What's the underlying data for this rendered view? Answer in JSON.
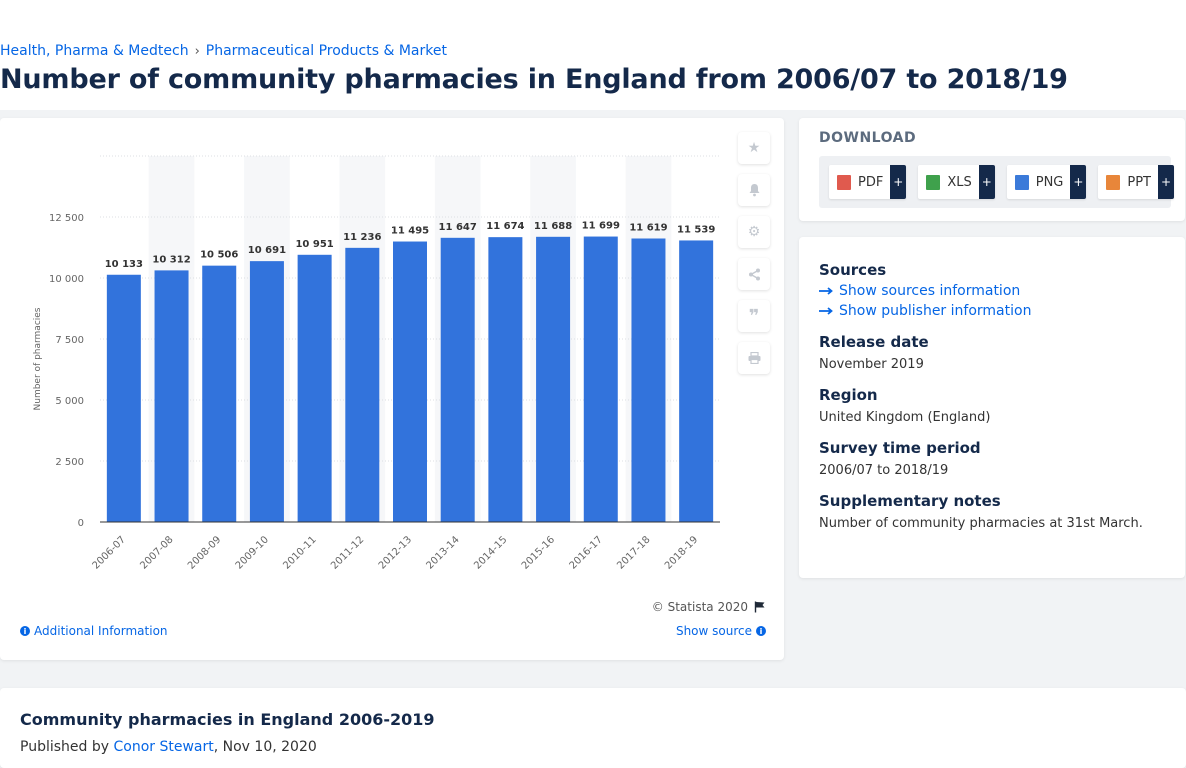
{
  "breadcrumb": {
    "first": "Health, Pharma & Medtech",
    "sep": "›",
    "second": "Pharmaceutical Products & Market"
  },
  "page_title": "Number of community pharmacies in England from 2006/07 to 2018/19",
  "chart_footer": {
    "copyright": "© Statista 2020",
    "additional_info": "Additional Information",
    "show_source": "Show source"
  },
  "download": {
    "title": "DOWNLOAD",
    "buttons": [
      {
        "label": "PDF",
        "plus": "+",
        "color": "#e05a4e"
      },
      {
        "label": "XLS",
        "plus": "+",
        "color": "#3fa14c"
      },
      {
        "label": "PNG",
        "plus": "+",
        "color": "#3b7ad9"
      },
      {
        "label": "PPT",
        "plus": "+",
        "color": "#e8863a"
      }
    ]
  },
  "info": {
    "sources_title": "Sources",
    "sources_link": "Show sources information",
    "publisher_link": "Show publisher information",
    "release_title": "Release date",
    "release_value": "November 2019",
    "region_title": "Region",
    "region_value": "United Kingdom (England)",
    "survey_title": "Survey time period",
    "survey_value": "2006/07 to 2018/19",
    "notes_title": "Supplementary notes",
    "notes_value": "Number of community pharmacies at 31st March."
  },
  "bottom": {
    "title": "Community pharmacies in England 2006-2019",
    "published_by": "Published by",
    "author": "Conor Stewart",
    "date": ", Nov 10, 2020"
  },
  "colors": {
    "bar": "#3273dc",
    "brand_dark": "#14294a",
    "link": "#0666e5"
  },
  "icons": [
    "star-icon",
    "bell-icon",
    "gear-icon",
    "share-icon",
    "quote-icon",
    "print-icon",
    "flag-icon",
    "info-icon",
    "arrow-right-icon"
  ],
  "chart_data": {
    "type": "bar",
    "title": "",
    "xlabel": "",
    "ylabel": "Number of pharmacies",
    "ylim": [
      0,
      15000
    ],
    "yticks": [
      0,
      2500,
      5000,
      7500,
      10000,
      12500
    ],
    "ytick_labels": [
      "0",
      "2 500",
      "5 000",
      "7 500",
      "10 000",
      "12 500"
    ],
    "categories": [
      "2006-07",
      "2007-08",
      "2008-09",
      "2009-10",
      "2010-11",
      "2011-12",
      "2012-13",
      "2013-14",
      "2014-15",
      "2015-16",
      "2016-17",
      "2017-18",
      "2018-19"
    ],
    "values": [
      10133,
      10312,
      10506,
      10691,
      10951,
      11236,
      11495,
      11647,
      11674,
      11688,
      11699,
      11619,
      11539
    ],
    "value_labels": [
      "10 133",
      "10 312",
      "10 506",
      "10 691",
      "10 951",
      "11 236",
      "11 495",
      "11 647",
      "11 674",
      "11 688",
      "11 699",
      "11 619",
      "11 539"
    ]
  }
}
